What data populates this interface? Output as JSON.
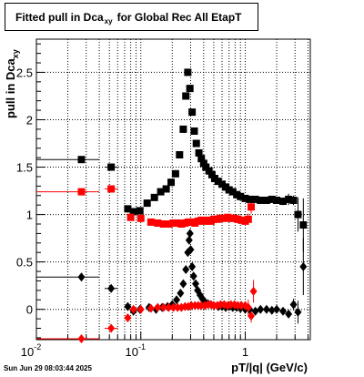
{
  "title_main": "Fitted pull in Dca",
  "title_sub": "xy",
  "title_tail": "for Global Rec All EtapT",
  "ylabel_main": "pull in Dca",
  "ylabel_sub": "xy",
  "xlabel": "pT/|q| (GeV/c)",
  "datestamp": "Sun Jun 29 08:03:44 2025",
  "colors": {
    "black": "#000000",
    "red": "#ff0000",
    "grid": "#000000"
  },
  "chart_data": {
    "type": "scatter",
    "x_scale": "log",
    "xlim": [
      0.01,
      4.2
    ],
    "ylim": [
      -0.32,
      2.85
    ],
    "grid": true,
    "x_major_ticks": [
      0.01,
      0.1,
      1
    ],
    "x_major_labels": [
      "10^-2",
      "10^-1",
      "1"
    ],
    "y_ticks": [
      0,
      0.5,
      1,
      1.5,
      2,
      2.5
    ],
    "y_labels": [
      "0",
      "0.5",
      "1",
      "1.5",
      "2",
      "2.5"
    ],
    "series": [
      {
        "marker": "square",
        "color": "black",
        "points": [
          {
            "x": 0.027,
            "y": 1.58,
            "xerr": [
              0.01,
              0.04
            ]
          },
          {
            "x": 0.052,
            "y": 1.5,
            "xerr": [
              0.045,
              0.06
            ]
          },
          {
            "x": 0.075,
            "y": 1.06
          },
          {
            "x": 0.085,
            "y": 1.03
          },
          {
            "x": 0.098,
            "y": 1.04
          },
          {
            "x": 0.115,
            "y": 1.12
          },
          {
            "x": 0.135,
            "y": 1.18
          },
          {
            "x": 0.155,
            "y": 1.24
          },
          {
            "x": 0.175,
            "y": 1.27
          },
          {
            "x": 0.195,
            "y": 1.34
          },
          {
            "x": 0.215,
            "y": 1.43
          },
          {
            "x": 0.235,
            "y": 1.63
          },
          {
            "x": 0.255,
            "y": 1.9
          },
          {
            "x": 0.27,
            "y": 2.25
          },
          {
            "x": 0.282,
            "y": 2.5
          },
          {
            "x": 0.295,
            "y": 2.33
          },
          {
            "x": 0.31,
            "y": 2.08
          },
          {
            "x": 0.325,
            "y": 1.88
          },
          {
            "x": 0.34,
            "y": 1.75
          },
          {
            "x": 0.36,
            "y": 1.65
          },
          {
            "x": 0.38,
            "y": 1.59
          },
          {
            "x": 0.4,
            "y": 1.54
          },
          {
            "x": 0.42,
            "y": 1.5
          },
          {
            "x": 0.45,
            "y": 1.46
          },
          {
            "x": 0.48,
            "y": 1.42
          },
          {
            "x": 0.51,
            "y": 1.38
          },
          {
            "x": 0.55,
            "y": 1.35
          },
          {
            "x": 0.6,
            "y": 1.32
          },
          {
            "x": 0.65,
            "y": 1.29
          },
          {
            "x": 0.7,
            "y": 1.26
          },
          {
            "x": 0.76,
            "y": 1.24
          },
          {
            "x": 0.83,
            "y": 1.21
          },
          {
            "x": 0.9,
            "y": 1.19
          },
          {
            "x": 1.0,
            "y": 1.17
          },
          {
            "x": 1.1,
            "y": 1.16
          },
          {
            "x": 1.25,
            "y": 1.16
          },
          {
            "x": 1.4,
            "y": 1.15
          },
          {
            "x": 1.6,
            "y": 1.15
          },
          {
            "x": 1.8,
            "y": 1.16
          },
          {
            "x": 2.0,
            "y": 1.15
          },
          {
            "x": 2.3,
            "y": 1.14,
            "yerr": 0.04
          },
          {
            "x": 2.6,
            "y": 1.16,
            "yerr": 0.06
          },
          {
            "x": 2.9,
            "y": 1.15,
            "yerr": 0.05
          },
          {
            "x": 3.2,
            "y": 1.0,
            "yerr": 0.18
          },
          {
            "x": 3.6,
            "y": 0.89,
            "yerr": 0.28
          }
        ]
      },
      {
        "marker": "square",
        "color": "red",
        "points": [
          {
            "x": 0.027,
            "y": 1.24,
            "xerr": [
              0.01,
              0.04
            ]
          },
          {
            "x": 0.052,
            "y": 1.27,
            "xerr": [
              0.045,
              0.06
            ]
          },
          {
            "x": 0.08,
            "y": 0.97
          },
          {
            "x": 0.1,
            "y": 0.96
          },
          {
            "x": 0.125,
            "y": 0.92
          },
          {
            "x": 0.145,
            "y": 0.91
          },
          {
            "x": 0.165,
            "y": 0.9
          },
          {
            "x": 0.185,
            "y": 0.9
          },
          {
            "x": 0.205,
            "y": 0.91
          },
          {
            "x": 0.225,
            "y": 0.91
          },
          {
            "x": 0.245,
            "y": 0.9
          },
          {
            "x": 0.265,
            "y": 0.91
          },
          {
            "x": 0.285,
            "y": 0.92
          },
          {
            "x": 0.305,
            "y": 0.92
          },
          {
            "x": 0.33,
            "y": 0.91
          },
          {
            "x": 0.355,
            "y": 0.93
          },
          {
            "x": 0.38,
            "y": 0.94
          },
          {
            "x": 0.41,
            "y": 0.93
          },
          {
            "x": 0.44,
            "y": 0.94
          },
          {
            "x": 0.47,
            "y": 0.93
          },
          {
            "x": 0.5,
            "y": 0.95
          },
          {
            "x": 0.54,
            "y": 0.95
          },
          {
            "x": 0.58,
            "y": 0.96
          },
          {
            "x": 0.63,
            "y": 0.96
          },
          {
            "x": 0.68,
            "y": 0.97
          },
          {
            "x": 0.73,
            "y": 0.96
          },
          {
            "x": 0.79,
            "y": 0.96
          },
          {
            "x": 0.85,
            "y": 0.95
          },
          {
            "x": 0.92,
            "y": 0.94
          },
          {
            "x": 1.0,
            "y": 0.93
          },
          {
            "x": 1.07,
            "y": 0.95,
            "yerr": 0.06
          },
          {
            "x": 1.14,
            "y": 1.08,
            "yerr": 0.07
          }
        ]
      },
      {
        "marker": "diamond",
        "color": "black",
        "points": [
          {
            "x": 0.027,
            "y": 0.34,
            "xerr": [
              0.01,
              0.04
            ]
          },
          {
            "x": 0.052,
            "y": 0.22,
            "xerr": [
              0.045,
              0.06
            ]
          },
          {
            "x": 0.075,
            "y": 0.03
          },
          {
            "x": 0.085,
            "y": -0.02
          },
          {
            "x": 0.098,
            "y": 0.0
          },
          {
            "x": 0.12,
            "y": 0.02
          },
          {
            "x": 0.14,
            "y": 0.0
          },
          {
            "x": 0.16,
            "y": 0.02
          },
          {
            "x": 0.18,
            "y": 0.03
          },
          {
            "x": 0.2,
            "y": 0.05
          },
          {
            "x": 0.22,
            "y": 0.1
          },
          {
            "x": 0.24,
            "y": 0.17
          },
          {
            "x": 0.255,
            "y": 0.27
          },
          {
            "x": 0.27,
            "y": 0.42
          },
          {
            "x": 0.282,
            "y": 0.6
          },
          {
            "x": 0.29,
            "y": 0.73
          },
          {
            "x": 0.296,
            "y": 0.8
          },
          {
            "x": 0.3,
            "y": 0.63
          },
          {
            "x": 0.31,
            "y": 0.45
          },
          {
            "x": 0.32,
            "y": 0.35
          },
          {
            "x": 0.335,
            "y": 0.27
          },
          {
            "x": 0.35,
            "y": 0.2
          },
          {
            "x": 0.37,
            "y": 0.15
          },
          {
            "x": 0.39,
            "y": 0.11
          },
          {
            "x": 0.41,
            "y": 0.08
          },
          {
            "x": 0.44,
            "y": 0.06
          },
          {
            "x": 0.47,
            "y": 0.05
          },
          {
            "x": 0.5,
            "y": 0.04
          },
          {
            "x": 0.55,
            "y": 0.03
          },
          {
            "x": 0.6,
            "y": 0.03
          },
          {
            "x": 0.65,
            "y": 0.02
          },
          {
            "x": 0.7,
            "y": 0.03
          },
          {
            "x": 0.76,
            "y": 0.02
          },
          {
            "x": 0.83,
            "y": 0.02
          },
          {
            "x": 0.9,
            "y": 0.01
          },
          {
            "x": 1.0,
            "y": 0.0
          },
          {
            "x": 1.1,
            "y": 0.0
          },
          {
            "x": 1.25,
            "y": -0.02
          },
          {
            "x": 1.4,
            "y": 0.0
          },
          {
            "x": 1.6,
            "y": 0.0
          },
          {
            "x": 1.8,
            "y": -0.01
          },
          {
            "x": 2.0,
            "y": 0.0
          },
          {
            "x": 2.3,
            "y": -0.02
          },
          {
            "x": 2.6,
            "y": -0.05
          },
          {
            "x": 2.9,
            "y": 0.05,
            "yerr": 0.06
          },
          {
            "x": 3.2,
            "y": -0.03,
            "yerr": 0.12
          },
          {
            "x": 3.6,
            "y": 0.45,
            "yerr": 0.3
          }
        ]
      },
      {
        "marker": "diamond",
        "color": "red",
        "points": [
          {
            "x": 0.027,
            "y": -0.31,
            "xerr": [
              0.01,
              0.04
            ]
          },
          {
            "x": 0.052,
            "y": -0.2,
            "xerr": [
              0.045,
              0.06
            ]
          },
          {
            "x": 0.075,
            "y": -0.09
          },
          {
            "x": 0.085,
            "y": 0.0
          },
          {
            "x": 0.1,
            "y": 0.0
          },
          {
            "x": 0.125,
            "y": 0.01
          },
          {
            "x": 0.145,
            "y": 0.02
          },
          {
            "x": 0.165,
            "y": 0.02
          },
          {
            "x": 0.185,
            "y": 0.02
          },
          {
            "x": 0.205,
            "y": 0.02
          },
          {
            "x": 0.225,
            "y": 0.02
          },
          {
            "x": 0.245,
            "y": 0.02
          },
          {
            "x": 0.265,
            "y": 0.03
          },
          {
            "x": 0.285,
            "y": 0.03
          },
          {
            "x": 0.305,
            "y": 0.04
          },
          {
            "x": 0.33,
            "y": 0.04
          },
          {
            "x": 0.355,
            "y": 0.04
          },
          {
            "x": 0.38,
            "y": 0.04
          },
          {
            "x": 0.41,
            "y": 0.04
          },
          {
            "x": 0.44,
            "y": 0.05
          },
          {
            "x": 0.47,
            "y": 0.05
          },
          {
            "x": 0.5,
            "y": 0.04
          },
          {
            "x": 0.54,
            "y": 0.04
          },
          {
            "x": 0.58,
            "y": 0.05
          },
          {
            "x": 0.63,
            "y": 0.05
          },
          {
            "x": 0.68,
            "y": 0.04
          },
          {
            "x": 0.73,
            "y": 0.05
          },
          {
            "x": 0.79,
            "y": 0.05
          },
          {
            "x": 0.85,
            "y": 0.04
          },
          {
            "x": 0.92,
            "y": 0.04
          },
          {
            "x": 1.0,
            "y": 0.04
          },
          {
            "x": 1.07,
            "y": 0.02,
            "yerr": 0.08
          },
          {
            "x": 1.14,
            "y": -0.07,
            "yerr": 0.07
          },
          {
            "x": 1.2,
            "y": 0.19,
            "yerr": 0.12
          }
        ]
      }
    ]
  }
}
